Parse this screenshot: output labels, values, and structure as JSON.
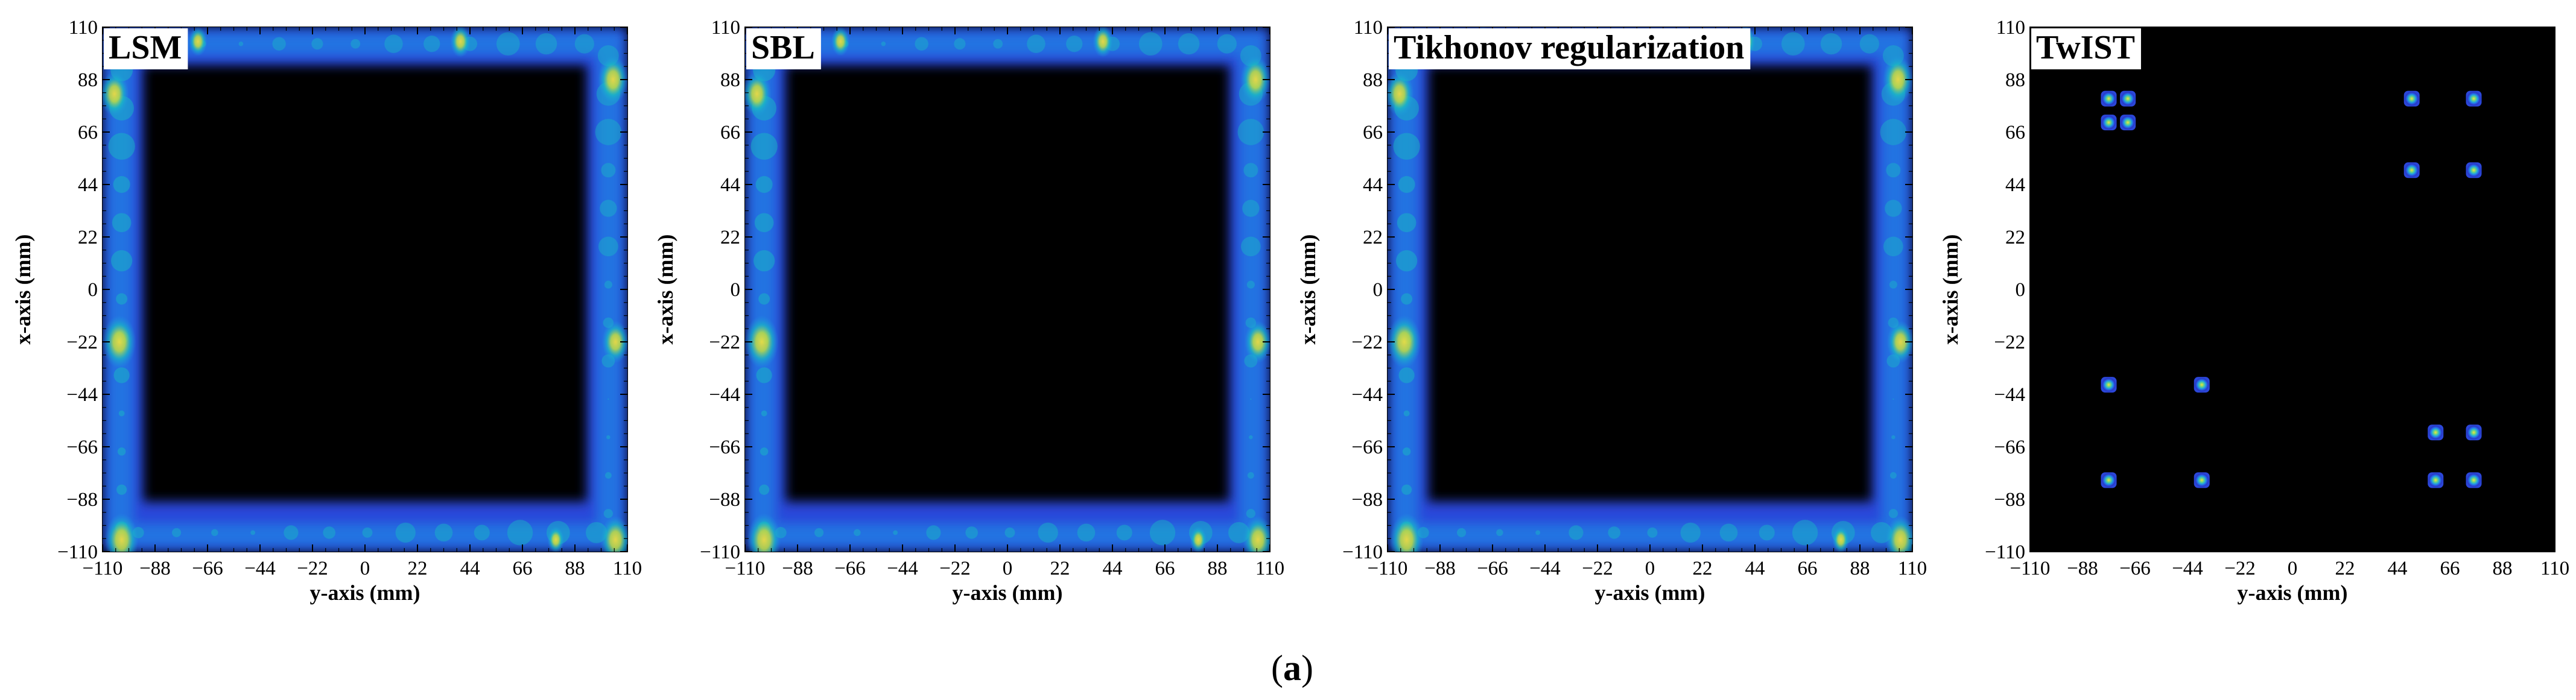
{
  "caption": {
    "open": "(",
    "label": "a",
    "close": ")"
  },
  "colors": {
    "background": "#000000",
    "colormap": [
      "#000000",
      "#1a1f8e",
      "#2b46d9",
      "#2f6ff2",
      "#1f98e8",
      "#19bfc2",
      "#5fd38a",
      "#b9d84a",
      "#f7e23a"
    ]
  },
  "chart_data": [
    {
      "type": "heatmap",
      "title": "LSM",
      "xlabel": "y-axis (mm)",
      "ylabel": "x-axis (mm)",
      "xlim": [
        -110,
        110
      ],
      "ylim": [
        -110,
        110
      ],
      "xticks": [
        "−110",
        "−88",
        "−66",
        "−44",
        "−22",
        "0",
        "22",
        "44",
        "66",
        "88",
        "110"
      ],
      "yticks": [
        "110",
        "88",
        "66",
        "44",
        "22",
        "0",
        "−22",
        "−44",
        "−66",
        "−88",
        "−110"
      ],
      "pattern": "frame",
      "frame": {
        "outer": [
          -110,
          110
        ],
        "inner_x": [
          -93,
          93
        ],
        "inner_y": [
          -89,
          94
        ]
      },
      "hotspots": [
        [
          -103,
          -22,
          1.0
        ],
        [
          -105,
          82,
          0.85
        ],
        [
          -102,
          -105,
          1.0
        ],
        [
          104,
          88,
          0.9
        ],
        [
          105,
          -22,
          0.8
        ],
        [
          105,
          -105,
          0.9
        ],
        [
          -70,
          104,
          0.55
        ],
        [
          40,
          104,
          0.6
        ],
        [
          80,
          -105,
          0.5
        ]
      ]
    },
    {
      "type": "heatmap",
      "title": "SBL",
      "xlabel": "y-axis (mm)",
      "ylabel": "x-axis (mm)",
      "xlim": [
        -110,
        110
      ],
      "ylim": [
        -110,
        110
      ],
      "xticks": [
        "−110",
        "−88",
        "−66",
        "−44",
        "−22",
        "0",
        "22",
        "44",
        "66",
        "88",
        "110"
      ],
      "yticks": [
        "110",
        "88",
        "66",
        "44",
        "22",
        "0",
        "−22",
        "−44",
        "−66",
        "−88",
        "−110"
      ],
      "pattern": "frame",
      "frame": {
        "outer": [
          -110,
          110
        ],
        "inner_x": [
          -93,
          93
        ],
        "inner_y": [
          -89,
          94
        ]
      },
      "hotspots": [
        [
          -103,
          -22,
          1.0
        ],
        [
          -105,
          82,
          0.85
        ],
        [
          -102,
          -105,
          1.0
        ],
        [
          104,
          88,
          0.9
        ],
        [
          105,
          -22,
          0.8
        ],
        [
          105,
          -105,
          0.9
        ],
        [
          -70,
          104,
          0.55
        ],
        [
          40,
          104,
          0.6
        ],
        [
          80,
          -105,
          0.5
        ]
      ]
    },
    {
      "type": "heatmap",
      "title": "Tikhonov regularization",
      "xlabel": "y-axis (mm)",
      "ylabel": "x-axis (mm)",
      "xlim": [
        -110,
        110
      ],
      "ylim": [
        -110,
        110
      ],
      "xticks": [
        "−110",
        "−88",
        "−66",
        "−44",
        "−22",
        "0",
        "22",
        "44",
        "66",
        "88",
        "110"
      ],
      "yticks": [
        "110",
        "88",
        "66",
        "44",
        "22",
        "0",
        "−22",
        "−44",
        "−66",
        "−88",
        "−110"
      ],
      "pattern": "frame",
      "frame": {
        "outer": [
          -110,
          110
        ],
        "inner_x": [
          -93,
          93
        ],
        "inner_y": [
          -89,
          94
        ]
      },
      "hotspots": [
        [
          -103,
          -22,
          1.0
        ],
        [
          -105,
          82,
          0.85
        ],
        [
          -102,
          -105,
          1.0
        ],
        [
          104,
          88,
          0.9
        ],
        [
          105,
          -22,
          0.8
        ],
        [
          105,
          -105,
          0.9
        ],
        [
          -70,
          104,
          0.55
        ],
        [
          40,
          104,
          0.6
        ],
        [
          80,
          -105,
          0.5
        ]
      ]
    },
    {
      "type": "heatmap",
      "title": "TwIST",
      "xlabel": "y-axis (mm)",
      "ylabel": "x-axis (mm)",
      "xlim": [
        -110,
        110
      ],
      "ylim": [
        -110,
        110
      ],
      "xticks": [
        "−110",
        "−88",
        "−66",
        "−44",
        "−22",
        "0",
        "22",
        "44",
        "66",
        "88",
        "110"
      ],
      "yticks": [
        "110",
        "88",
        "66",
        "44",
        "22",
        "0",
        "−22",
        "−44",
        "−66",
        "−88",
        "−110"
      ],
      "pattern": "points",
      "points": [
        [
          -77,
          80
        ],
        [
          -69,
          80
        ],
        [
          -77,
          70
        ],
        [
          -69,
          70
        ],
        [
          50,
          80
        ],
        [
          76,
          80
        ],
        [
          50,
          50
        ],
        [
          76,
          50
        ],
        [
          -77,
          -40
        ],
        [
          -38,
          -40
        ],
        [
          -77,
          -80
        ],
        [
          -38,
          -80
        ],
        [
          60,
          -60
        ],
        [
          76,
          -60
        ],
        [
          60,
          -80
        ],
        [
          76,
          -80
        ]
      ]
    }
  ]
}
